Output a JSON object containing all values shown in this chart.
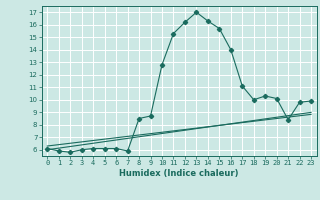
{
  "x": [
    0,
    1,
    2,
    3,
    4,
    5,
    6,
    7,
    8,
    9,
    10,
    11,
    12,
    13,
    14,
    15,
    16,
    17,
    18,
    19,
    20,
    21,
    22,
    23
  ],
  "y_main": [
    6.1,
    5.9,
    5.8,
    6.0,
    6.1,
    6.1,
    6.1,
    5.9,
    8.5,
    8.7,
    12.8,
    15.3,
    16.2,
    17.0,
    16.3,
    15.7,
    14.0,
    11.1,
    10.0,
    10.3,
    10.1,
    8.4,
    9.8,
    9.9
  ],
  "y_trend1": [
    6.0,
    6.13,
    6.26,
    6.39,
    6.52,
    6.65,
    6.78,
    6.91,
    7.04,
    7.17,
    7.3,
    7.43,
    7.56,
    7.69,
    7.82,
    7.95,
    8.08,
    8.21,
    8.34,
    8.47,
    8.6,
    8.73,
    8.86,
    8.99
  ],
  "y_trend2": [
    6.3,
    6.41,
    6.52,
    6.63,
    6.74,
    6.85,
    6.96,
    7.07,
    7.18,
    7.29,
    7.4,
    7.51,
    7.62,
    7.73,
    7.84,
    7.95,
    8.06,
    8.17,
    8.28,
    8.39,
    8.5,
    8.61,
    8.72,
    8.83
  ],
  "line_color": "#1a6b5e",
  "bg_color": "#cce8e4",
  "grid_color": "#ffffff",
  "xlabel": "Humidex (Indice chaleur)",
  "ylabel_ticks": [
    6,
    7,
    8,
    9,
    10,
    11,
    12,
    13,
    14,
    15,
    16,
    17
  ],
  "xlim": [
    -0.5,
    23.5
  ],
  "ylim": [
    5.5,
    17.5
  ],
  "marker": "D",
  "markersize": 2.2,
  "linewidth": 0.8,
  "title_fontsize": 7,
  "label_fontsize": 6,
  "tick_fontsize": 5
}
